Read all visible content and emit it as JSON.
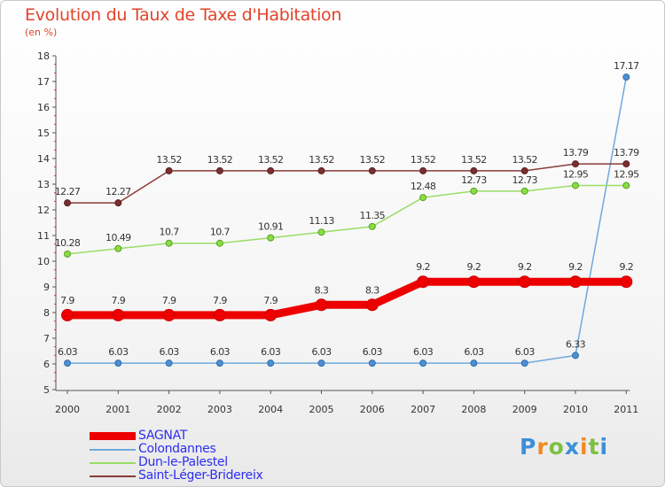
{
  "title": "Evolution du Taux de Taxe d'Habitation",
  "subtitle": "(en %)",
  "chart_data": {
    "type": "line",
    "title": "Evolution du Taux de Taxe d'Habitation",
    "ylabel": "(en %)",
    "xlabel": "",
    "x": [
      "2000",
      "2001",
      "2002",
      "2003",
      "2004",
      "2005",
      "2006",
      "2007",
      "2008",
      "2009",
      "2010",
      "2011"
    ],
    "ylim": [
      5,
      18
    ],
    "yticks": [
      5,
      6,
      7,
      8,
      9,
      10,
      11,
      12,
      13,
      14,
      15,
      16,
      17,
      18
    ],
    "grid": false,
    "legend_position": "bottom-left",
    "series": [
      {
        "name": "SAGNAT",
        "color": "#ee0000",
        "values": [
          7.9,
          7.9,
          7.9,
          7.9,
          7.9,
          8.3,
          8.3,
          9.2,
          9.2,
          9.2,
          9.2,
          9.2
        ],
        "labels": [
          "7.9",
          "7.9",
          "7.9",
          "7.9",
          "7.9",
          "8.3",
          "8.3",
          "9.2",
          "9.2",
          "9.2",
          "9.2",
          "9.2"
        ]
      },
      {
        "name": "Colondannes",
        "color": "#6fa8dc",
        "values": [
          6.03,
          6.03,
          6.03,
          6.03,
          6.03,
          6.03,
          6.03,
          6.03,
          6.03,
          6.03,
          6.33,
          17.17
        ],
        "labels": [
          "6.03",
          "6.03",
          "6.03",
          "6.03",
          "6.03",
          "6.03",
          "6.03",
          "6.03",
          "6.03",
          "6.03",
          "6.33",
          "17.17"
        ]
      },
      {
        "name": "Dun-le-Palestel",
        "color": "#99dd66",
        "values": [
          10.28,
          10.49,
          10.7,
          10.7,
          10.91,
          11.13,
          11.35,
          12.48,
          12.73,
          12.73,
          12.95,
          12.95
        ],
        "labels": [
          "10.28",
          "10.49",
          "10.7",
          "10.7",
          "10.91",
          "11.13",
          "11.35",
          "12.48",
          "12.73",
          "12.73",
          "12.95",
          "12.95"
        ]
      },
      {
        "name": "Saint-Léger-Bridereix",
        "color": "#8b3a3a",
        "values": [
          12.27,
          12.27,
          13.52,
          13.52,
          13.52,
          13.52,
          13.52,
          13.52,
          13.52,
          13.52,
          13.79,
          13.79
        ],
        "labels": [
          "12.27",
          "12.27",
          "13.52",
          "13.52",
          "13.52",
          "13.52",
          "13.52",
          "13.52",
          "13.52",
          "13.52",
          "13.79",
          "13.79"
        ]
      }
    ]
  },
  "logo": {
    "letters": [
      "P",
      "r",
      "o",
      "x",
      "i",
      "t",
      "i"
    ],
    "colors": [
      "#3c8fd8",
      "#f08a24",
      "#7cc043",
      "#3c8fd8",
      "#f08a24",
      "#7cc043",
      "#3c8fd8"
    ]
  }
}
